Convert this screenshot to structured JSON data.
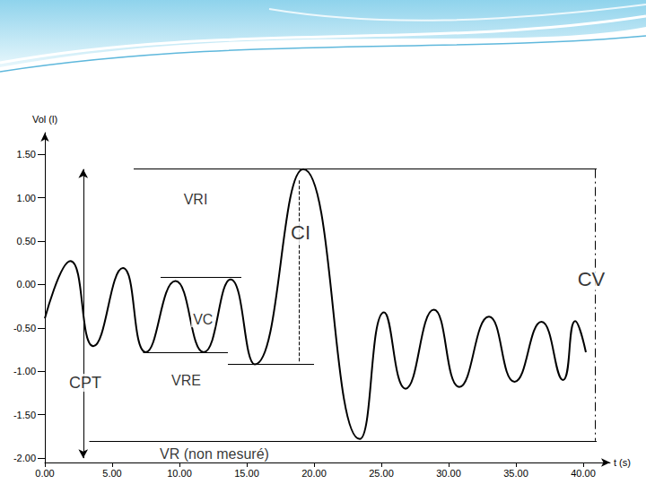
{
  "chart_data": {
    "type": "line",
    "x_label": "t (s)",
    "y_label": "Vol (l)",
    "x": [
      0,
      1.9,
      3.6,
      5.8,
      7.5,
      9.7,
      11.8,
      13.8,
      15.6,
      19.2,
      23.4,
      25.2,
      26.8,
      28.9,
      30.8,
      33.0,
      34.9,
      36.9,
      38.5,
      39.4,
      40.2
    ],
    "values": [
      -0.39,
      0.27,
      -0.71,
      0.19,
      -0.78,
      0.04,
      -0.78,
      0.06,
      -0.92,
      1.33,
      -1.78,
      -0.32,
      -1.2,
      -0.29,
      -1.18,
      -0.37,
      -1.12,
      -0.43,
      -1.1,
      -0.42,
      -0.78
    ],
    "color": "#000000",
    "line_style": "solid",
    "marker": "none",
    "grid": false,
    "xlim": [
      0,
      42
    ],
    "xticks": [
      {
        "value": 0,
        "label": "0.00"
      },
      {
        "value": 5,
        "label": "5.00"
      },
      {
        "value": 10,
        "label": "10.00"
      },
      {
        "value": 15,
        "label": "15.00"
      },
      {
        "value": 20,
        "label": "20.00"
      },
      {
        "value": 25,
        "label": "25.00"
      },
      {
        "value": 30,
        "label": "30.00"
      },
      {
        "value": 35,
        "label": "35.00"
      },
      {
        "value": 40,
        "label": "40.00"
      }
    ],
    "ylim": [
      -2.05,
      1.75
    ],
    "yticks": [
      {
        "value": -2,
        "label": "-2.00"
      },
      {
        "value": -1.5,
        "label": "-1.50"
      },
      {
        "value": -1,
        "label": "-1.00"
      },
      {
        "value": -0.5,
        "label": "-0.50"
      },
      {
        "value": 0,
        "label": "0.00"
      },
      {
        "value": 0.5,
        "label": "0.50"
      },
      {
        "value": 1,
        "label": "1.00"
      },
      {
        "value": 1.5,
        "label": "1.50"
      }
    ],
    "lines": [
      {
        "x": [
          6.6,
          41
        ],
        "y": [
          1.33,
          1.33
        ],
        "line_style": "solid",
        "marker": "none"
      },
      {
        "x": [
          8.6,
          14.6
        ],
        "y": [
          0.08,
          0.08
        ],
        "line_style": "solid",
        "marker": "none"
      },
      {
        "x": [
          7.3,
          13.6
        ],
        "y": [
          -0.78,
          -0.78
        ],
        "line_style": "solid",
        "marker": "none"
      },
      {
        "x": [
          13.6,
          20
        ],
        "y": [
          -0.92,
          -0.92
        ],
        "line_style": "solid",
        "marker": "none"
      },
      {
        "x": [
          3.3,
          41
        ],
        "y": [
          -1.8,
          -1.8
        ],
        "line_style": "solid",
        "marker": "none"
      },
      {
        "x": [
          2.85,
          2.85
        ],
        "y": [
          1.33,
          -2.0
        ],
        "line_style": "solid",
        "marker": "arrow"
      },
      {
        "x": [
          18.9,
          18.9
        ],
        "y": [
          1.2,
          -0.9
        ],
        "line_style": "dashed",
        "marker": "none"
      },
      {
        "x": [
          40.9,
          40.9
        ],
        "y": [
          1.33,
          -1.8
        ],
        "line_style": "dashdot",
        "marker": "none"
      }
    ],
    "annotations": [
      {
        "text": "VRI",
        "x": 11.2,
        "y": 0.98
      },
      {
        "text": "CI",
        "x": 19.0,
        "y": 0.6
      },
      {
        "text": "CV",
        "x": 40.6,
        "y": 0.06
      },
      {
        "text": "VC",
        "x": 11.75,
        "y": -0.4
      },
      {
        "text": "VRE",
        "x": 10.5,
        "y": -1.1
      },
      {
        "text": "CPT",
        "x": 3.0,
        "y": -1.13
      },
      {
        "text": "VR (non mesuré)",
        "x": 12.6,
        "y": -1.95
      }
    ]
  }
}
